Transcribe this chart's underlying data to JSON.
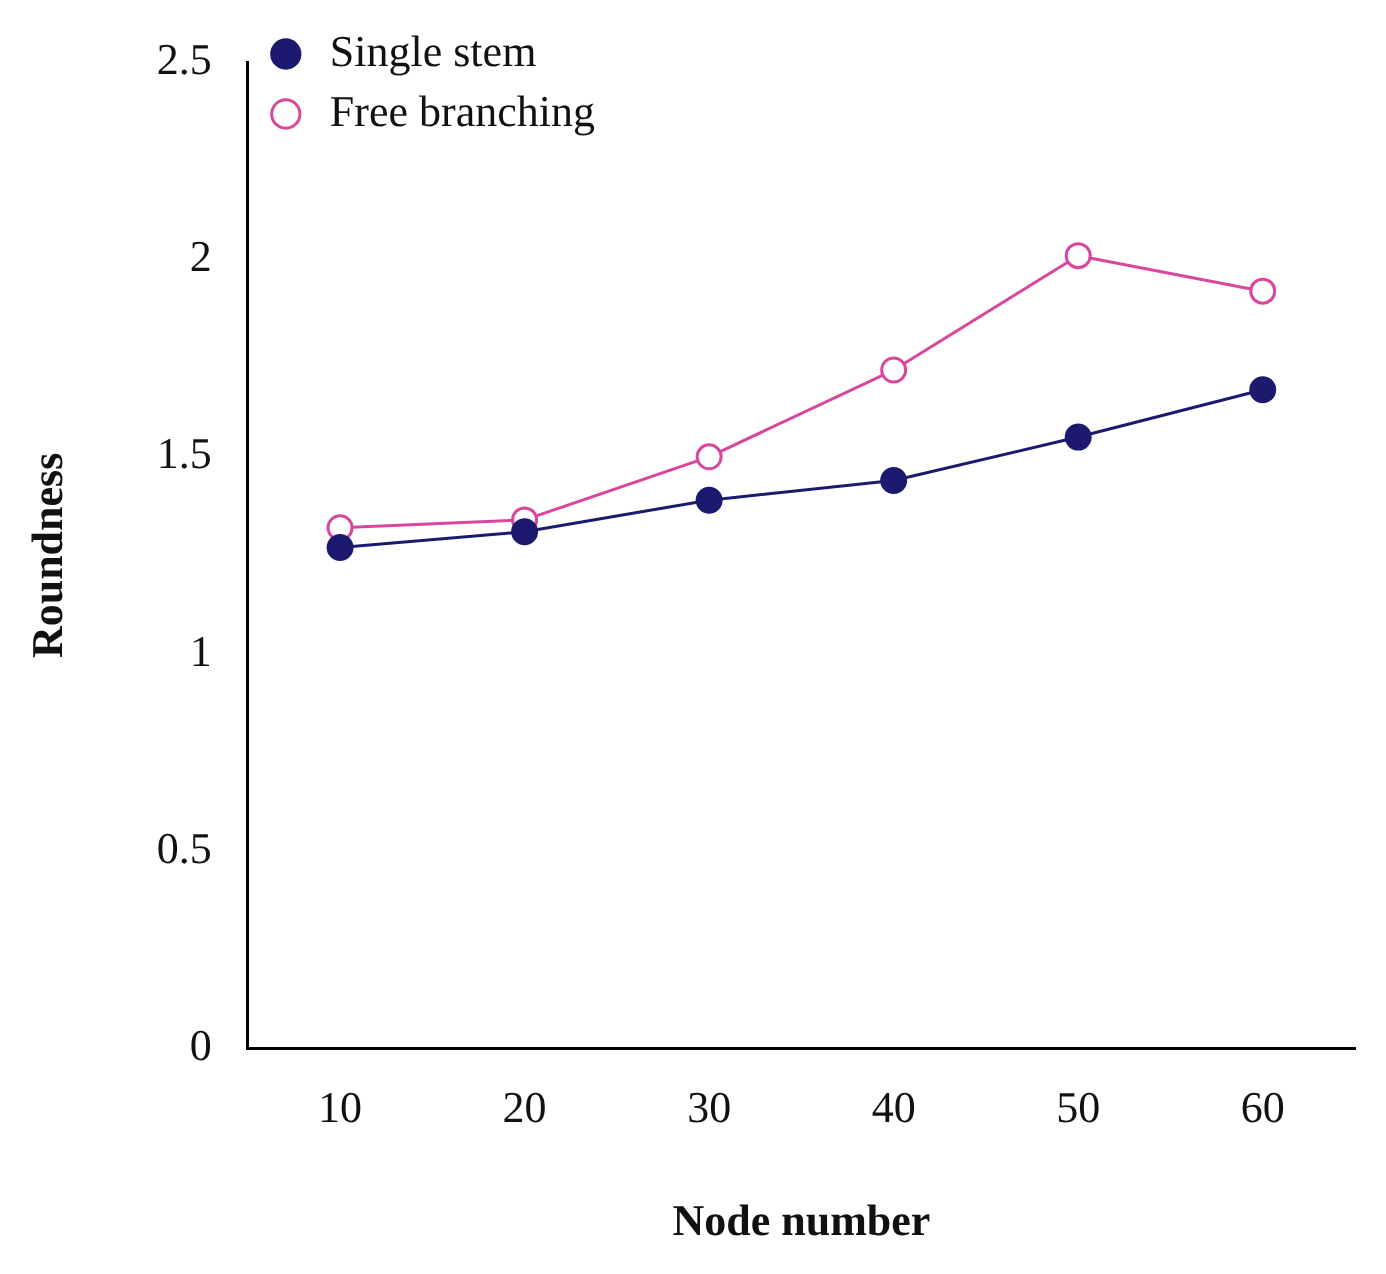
{
  "chart_data": {
    "type": "line",
    "xlabel": "Node number",
    "ylabel": "Roundness",
    "categories": [
      "10",
      "20",
      "30",
      "40",
      "50",
      "60"
    ],
    "series": [
      {
        "name": "Single stem",
        "color": "#1c1a6e",
        "values": [
          1.27,
          1.31,
          1.39,
          1.44,
          1.55,
          1.67
        ],
        "marker": "circle"
      },
      {
        "name": "Free branching",
        "color": "#d9479c",
        "values": [
          1.32,
          1.34,
          1.5,
          1.72,
          2.01,
          1.92
        ],
        "marker": "circle"
      }
    ],
    "ylim": [
      0,
      2.5
    ],
    "yticks": [
      0,
      0.5,
      1,
      1.5,
      2,
      2.5
    ],
    "grid": false,
    "legend": "top left"
  }
}
